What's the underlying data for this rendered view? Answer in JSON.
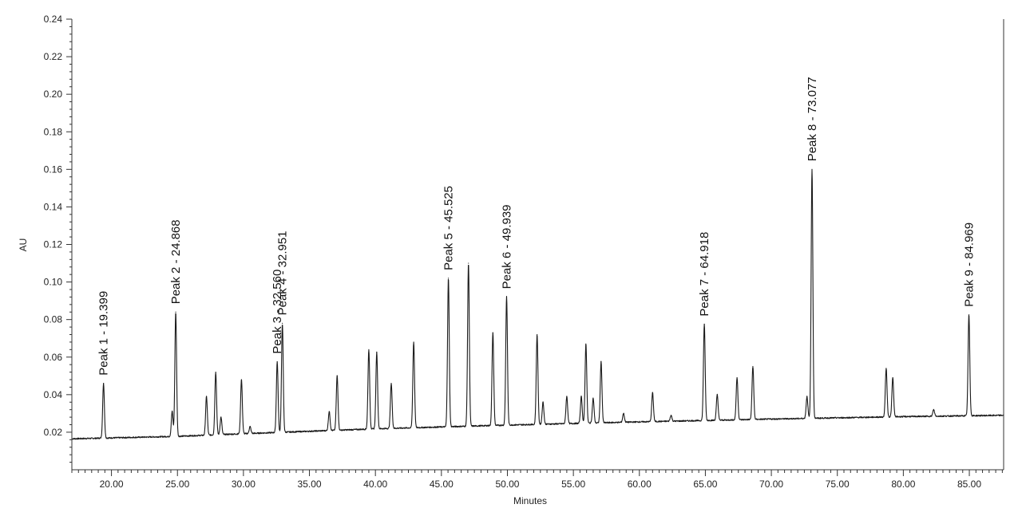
{
  "chart_data": {
    "type": "line",
    "title": "",
    "xlabel": "Minutes",
    "ylabel": "AU",
    "xlim": [
      17.0,
      87.6
    ],
    "ylim": [
      0.0,
      0.24
    ],
    "grid": false,
    "x_ticks": [
      {
        "value": 20,
        "label": "20.00"
      },
      {
        "value": 25,
        "label": "25.00"
      },
      {
        "value": 30,
        "label": "30.00"
      },
      {
        "value": 35,
        "label": "35.00"
      },
      {
        "value": 40,
        "label": "40.00"
      },
      {
        "value": 45,
        "label": "45.00"
      },
      {
        "value": 50,
        "label": "50.00"
      },
      {
        "value": 55,
        "label": "55.00"
      },
      {
        "value": 60,
        "label": "60.00"
      },
      {
        "value": 65,
        "label": "65.00"
      },
      {
        "value": 70,
        "label": "70.00"
      },
      {
        "value": 75,
        "label": "75.00"
      },
      {
        "value": 80,
        "label": "80.00"
      },
      {
        "value": 85,
        "label": "85.00"
      }
    ],
    "x_minor_step": 0.5,
    "y_ticks": [
      {
        "value": 0.02,
        "label": "0.02"
      },
      {
        "value": 0.04,
        "label": "0.04"
      },
      {
        "value": 0.06,
        "label": "0.06"
      },
      {
        "value": 0.08,
        "label": "0.08"
      },
      {
        "value": 0.1,
        "label": "0.10"
      },
      {
        "value": 0.12,
        "label": "0.12"
      },
      {
        "value": 0.14,
        "label": "0.14"
      },
      {
        "value": 0.16,
        "label": "0.16"
      },
      {
        "value": 0.18,
        "label": "0.18"
      },
      {
        "value": 0.2,
        "label": "0.20"
      },
      {
        "value": 0.22,
        "label": "0.22"
      },
      {
        "value": 0.24,
        "label": "0.24"
      }
    ],
    "y_minor_step": 0.004,
    "baseline": {
      "x": [
        17.0,
        19.0,
        25.0,
        30.0,
        40.0,
        50.0,
        60.0,
        70.0,
        80.0,
        87.6
      ],
      "y": [
        0.0165,
        0.0168,
        0.0178,
        0.0192,
        0.0218,
        0.0238,
        0.0255,
        0.027,
        0.0283,
        0.029
      ]
    },
    "peaks": [
      {
        "x": 19.4,
        "y": 0.046
      },
      {
        "x": 24.6,
        "y": 0.031
      },
      {
        "x": 24.87,
        "y": 0.084
      },
      {
        "x": 27.2,
        "y": 0.039
      },
      {
        "x": 27.9,
        "y": 0.052
      },
      {
        "x": 28.3,
        "y": 0.028
      },
      {
        "x": 29.85,
        "y": 0.048
      },
      {
        "x": 30.5,
        "y": 0.023
      },
      {
        "x": 32.56,
        "y": 0.0575
      },
      {
        "x": 32.95,
        "y": 0.078
      },
      {
        "x": 36.5,
        "y": 0.031
      },
      {
        "x": 37.1,
        "y": 0.05
      },
      {
        "x": 39.5,
        "y": 0.064
      },
      {
        "x": 40.1,
        "y": 0.0625
      },
      {
        "x": 41.2,
        "y": 0.046
      },
      {
        "x": 42.9,
        "y": 0.068
      },
      {
        "x": 45.53,
        "y": 0.102
      },
      {
        "x": 47.05,
        "y": 0.11
      },
      {
        "x": 48.9,
        "y": 0.073
      },
      {
        "x": 49.94,
        "y": 0.092
      },
      {
        "x": 52.25,
        "y": 0.072
      },
      {
        "x": 52.7,
        "y": 0.036
      },
      {
        "x": 54.5,
        "y": 0.039
      },
      {
        "x": 55.6,
        "y": 0.039
      },
      {
        "x": 55.95,
        "y": 0.067
      },
      {
        "x": 56.5,
        "y": 0.038
      },
      {
        "x": 57.1,
        "y": 0.0575
      },
      {
        "x": 58.8,
        "y": 0.03
      },
      {
        "x": 61.0,
        "y": 0.041
      },
      {
        "x": 62.4,
        "y": 0.029
      },
      {
        "x": 64.92,
        "y": 0.0775
      },
      {
        "x": 65.9,
        "y": 0.04
      },
      {
        "x": 67.4,
        "y": 0.049
      },
      {
        "x": 68.6,
        "y": 0.055
      },
      {
        "x": 72.7,
        "y": 0.039
      },
      {
        "x": 73.08,
        "y": 0.16
      },
      {
        "x": 78.7,
        "y": 0.054
      },
      {
        "x": 79.2,
        "y": 0.049
      },
      {
        "x": 82.3,
        "y": 0.032
      },
      {
        "x": 84.97,
        "y": 0.0825
      }
    ],
    "annotations": [
      {
        "text": "Peak 1 - 19.399",
        "x": 19.399
      },
      {
        "text": "Peak 2 - 24.868",
        "x": 24.868
      },
      {
        "text": "Peak 3 - 32.560",
        "x": 32.56
      },
      {
        "text": "Peak 4 - 32.951",
        "x": 32.951
      },
      {
        "text": "Peak 5 - 45.525",
        "x": 45.525
      },
      {
        "text": "Peak 6 - 49.939",
        "x": 49.939
      },
      {
        "text": "Peak 7 - 64.918",
        "x": 64.918
      },
      {
        "text": "Peak 8 - 73.077",
        "x": 73.077
      },
      {
        "text": "Peak 9 - 84.969",
        "x": 84.969
      }
    ],
    "line_color": "#1a1a1a",
    "axis_color": "#333333"
  }
}
